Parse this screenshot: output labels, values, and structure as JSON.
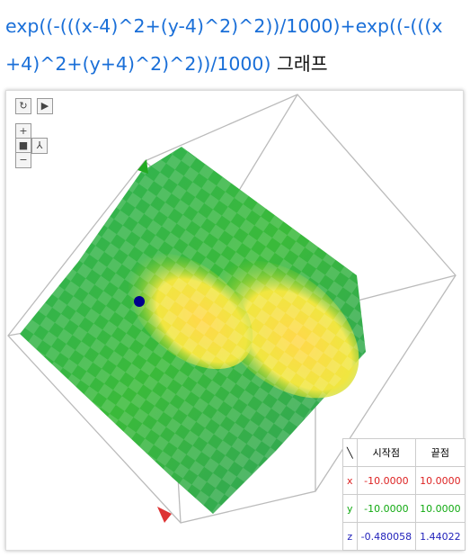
{
  "header": {
    "formula": "exp((-(((x-4)^2+(y-4)^2)^2))/1000)+exp((-(((x+4)^2+(y+4)^2)^2))/1000)",
    "suffix": "그래프"
  },
  "table": {
    "columns": [
      "시작점",
      "끝점"
    ],
    "rows": [
      [
        "x",
        "-10.0000",
        "10.0000"
      ],
      [
        "y",
        "-10.0000",
        "10.0000"
      ],
      [
        "z",
        "-0.480058",
        "1.44022"
      ]
    ]
  }
}
